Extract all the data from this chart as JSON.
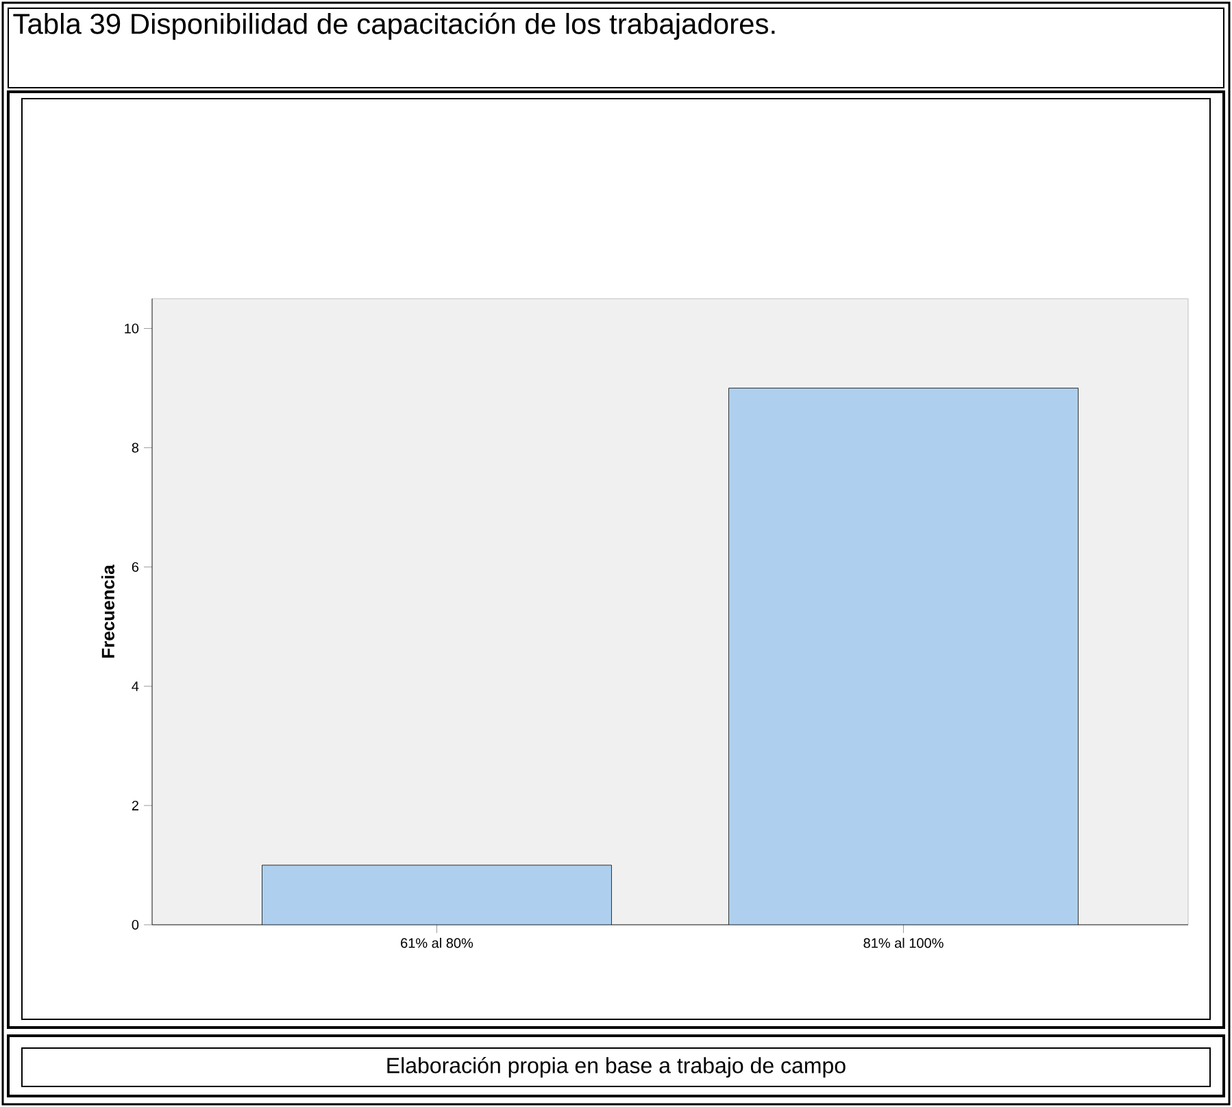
{
  "chart_data": {
    "type": "bar",
    "title": "Tabla 39 Disponibilidad de capacitación de los trabajadores.",
    "ylabel": "Frecuencia",
    "categories": [
      "61% al 80%",
      "81% al 100%"
    ],
    "values": [
      1,
      9
    ],
    "color": "#aed0ee",
    "ylim": [
      0,
      10.5
    ],
    "yticks": [
      0,
      2,
      4,
      6,
      8,
      10
    ],
    "annotations": [
      "Elaboración propia en base a trabajo de campo"
    ]
  }
}
